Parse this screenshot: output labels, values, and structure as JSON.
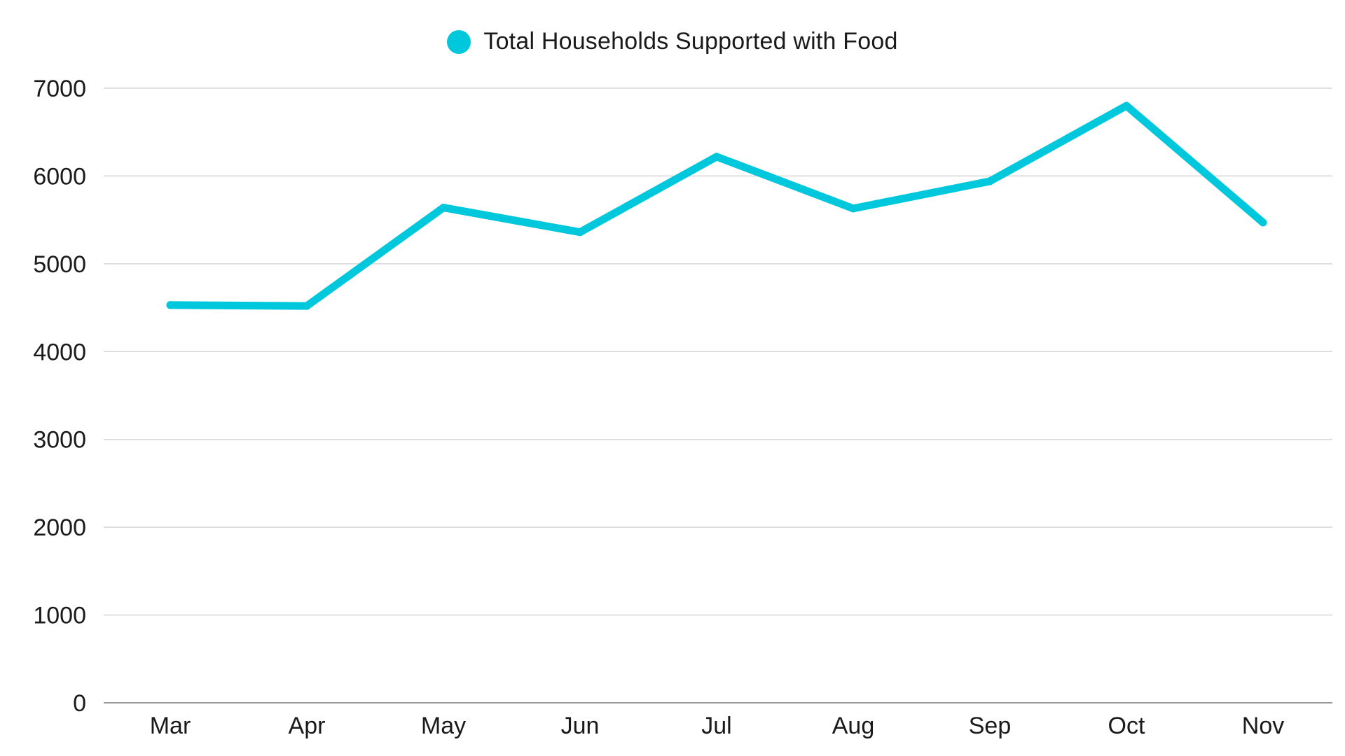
{
  "chart_data": {
    "type": "line",
    "title": "",
    "xlabel": "",
    "ylabel": "",
    "categories": [
      "Mar",
      "Apr",
      "May",
      "Jun",
      "Jul",
      "Aug",
      "Sep",
      "Oct",
      "Nov"
    ],
    "series": [
      {
        "name": "Total Households Supported with Food",
        "color": "#00C8DC",
        "values": [
          4530,
          4520,
          5640,
          5360,
          6220,
          5630,
          5940,
          6800,
          5470
        ]
      }
    ],
    "ylim": [
      0,
      7000
    ],
    "yticks": [
      0,
      1000,
      2000,
      3000,
      4000,
      5000,
      6000,
      7000
    ],
    "grid": true,
    "legend_position": "top-center"
  }
}
